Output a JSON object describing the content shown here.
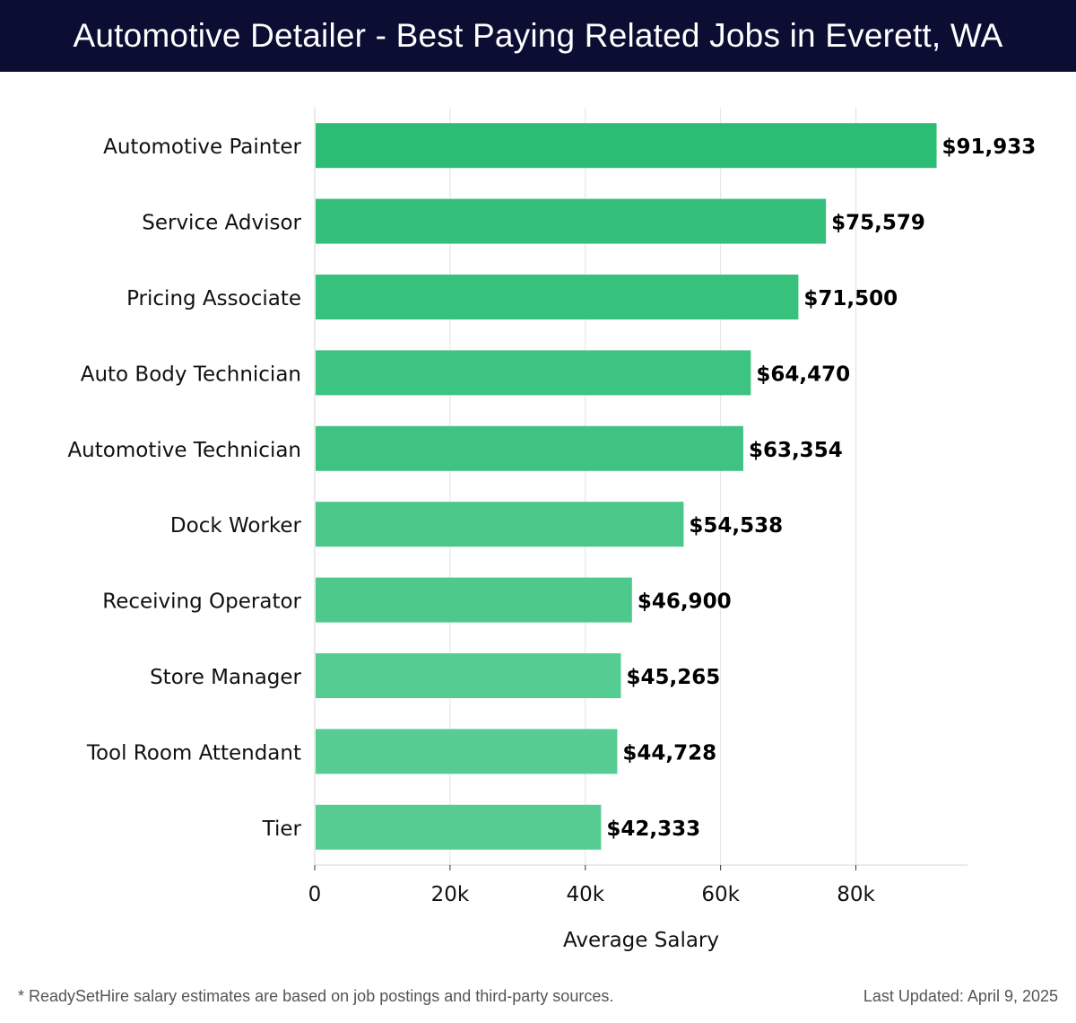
{
  "header": {
    "title": "Automotive Detailer - Best Paying Related Jobs in Everett, WA"
  },
  "chart_data": {
    "type": "bar",
    "orientation": "horizontal",
    "title": "Automotive Detailer - Best Paying Related Jobs in Everett, WA",
    "xlabel": "Average Salary",
    "ylabel": "",
    "xlim": [
      0,
      96500
    ],
    "x_ticks": [
      0,
      20000,
      40000,
      60000,
      80000
    ],
    "x_tick_labels": [
      "0",
      "20k",
      "40k",
      "60k",
      "80k"
    ],
    "grid": "vertical",
    "categories": [
      "Automotive Painter",
      "Service Advisor",
      "Pricing Associate",
      "Auto Body Technician",
      "Automotive Technician",
      "Dock Worker",
      "Receiving Operator",
      "Store Manager",
      "Tool Room Attendant",
      "Tier"
    ],
    "values": [
      91933,
      75579,
      71500,
      64470,
      63354,
      54538,
      46900,
      45265,
      44728,
      42333
    ],
    "value_labels": [
      "$91,933",
      "$75,579",
      "$71,500",
      "$64,470",
      "$63,354",
      "$54,538",
      "$46,900",
      "$45,265",
      "$44,728",
      "$42,333"
    ],
    "bar_colors": [
      "#2bbd74",
      "#34c07b",
      "#36c17c",
      "#3ec481",
      "#40c282",
      "#4bc78a",
      "#4ec98c",
      "#55cc92",
      "#57cd93",
      "#57cd93"
    ]
  },
  "footer": {
    "note": "* ReadySetHire salary estimates are based on job postings and third-party sources.",
    "updated": "Last Updated: April 9, 2025"
  }
}
